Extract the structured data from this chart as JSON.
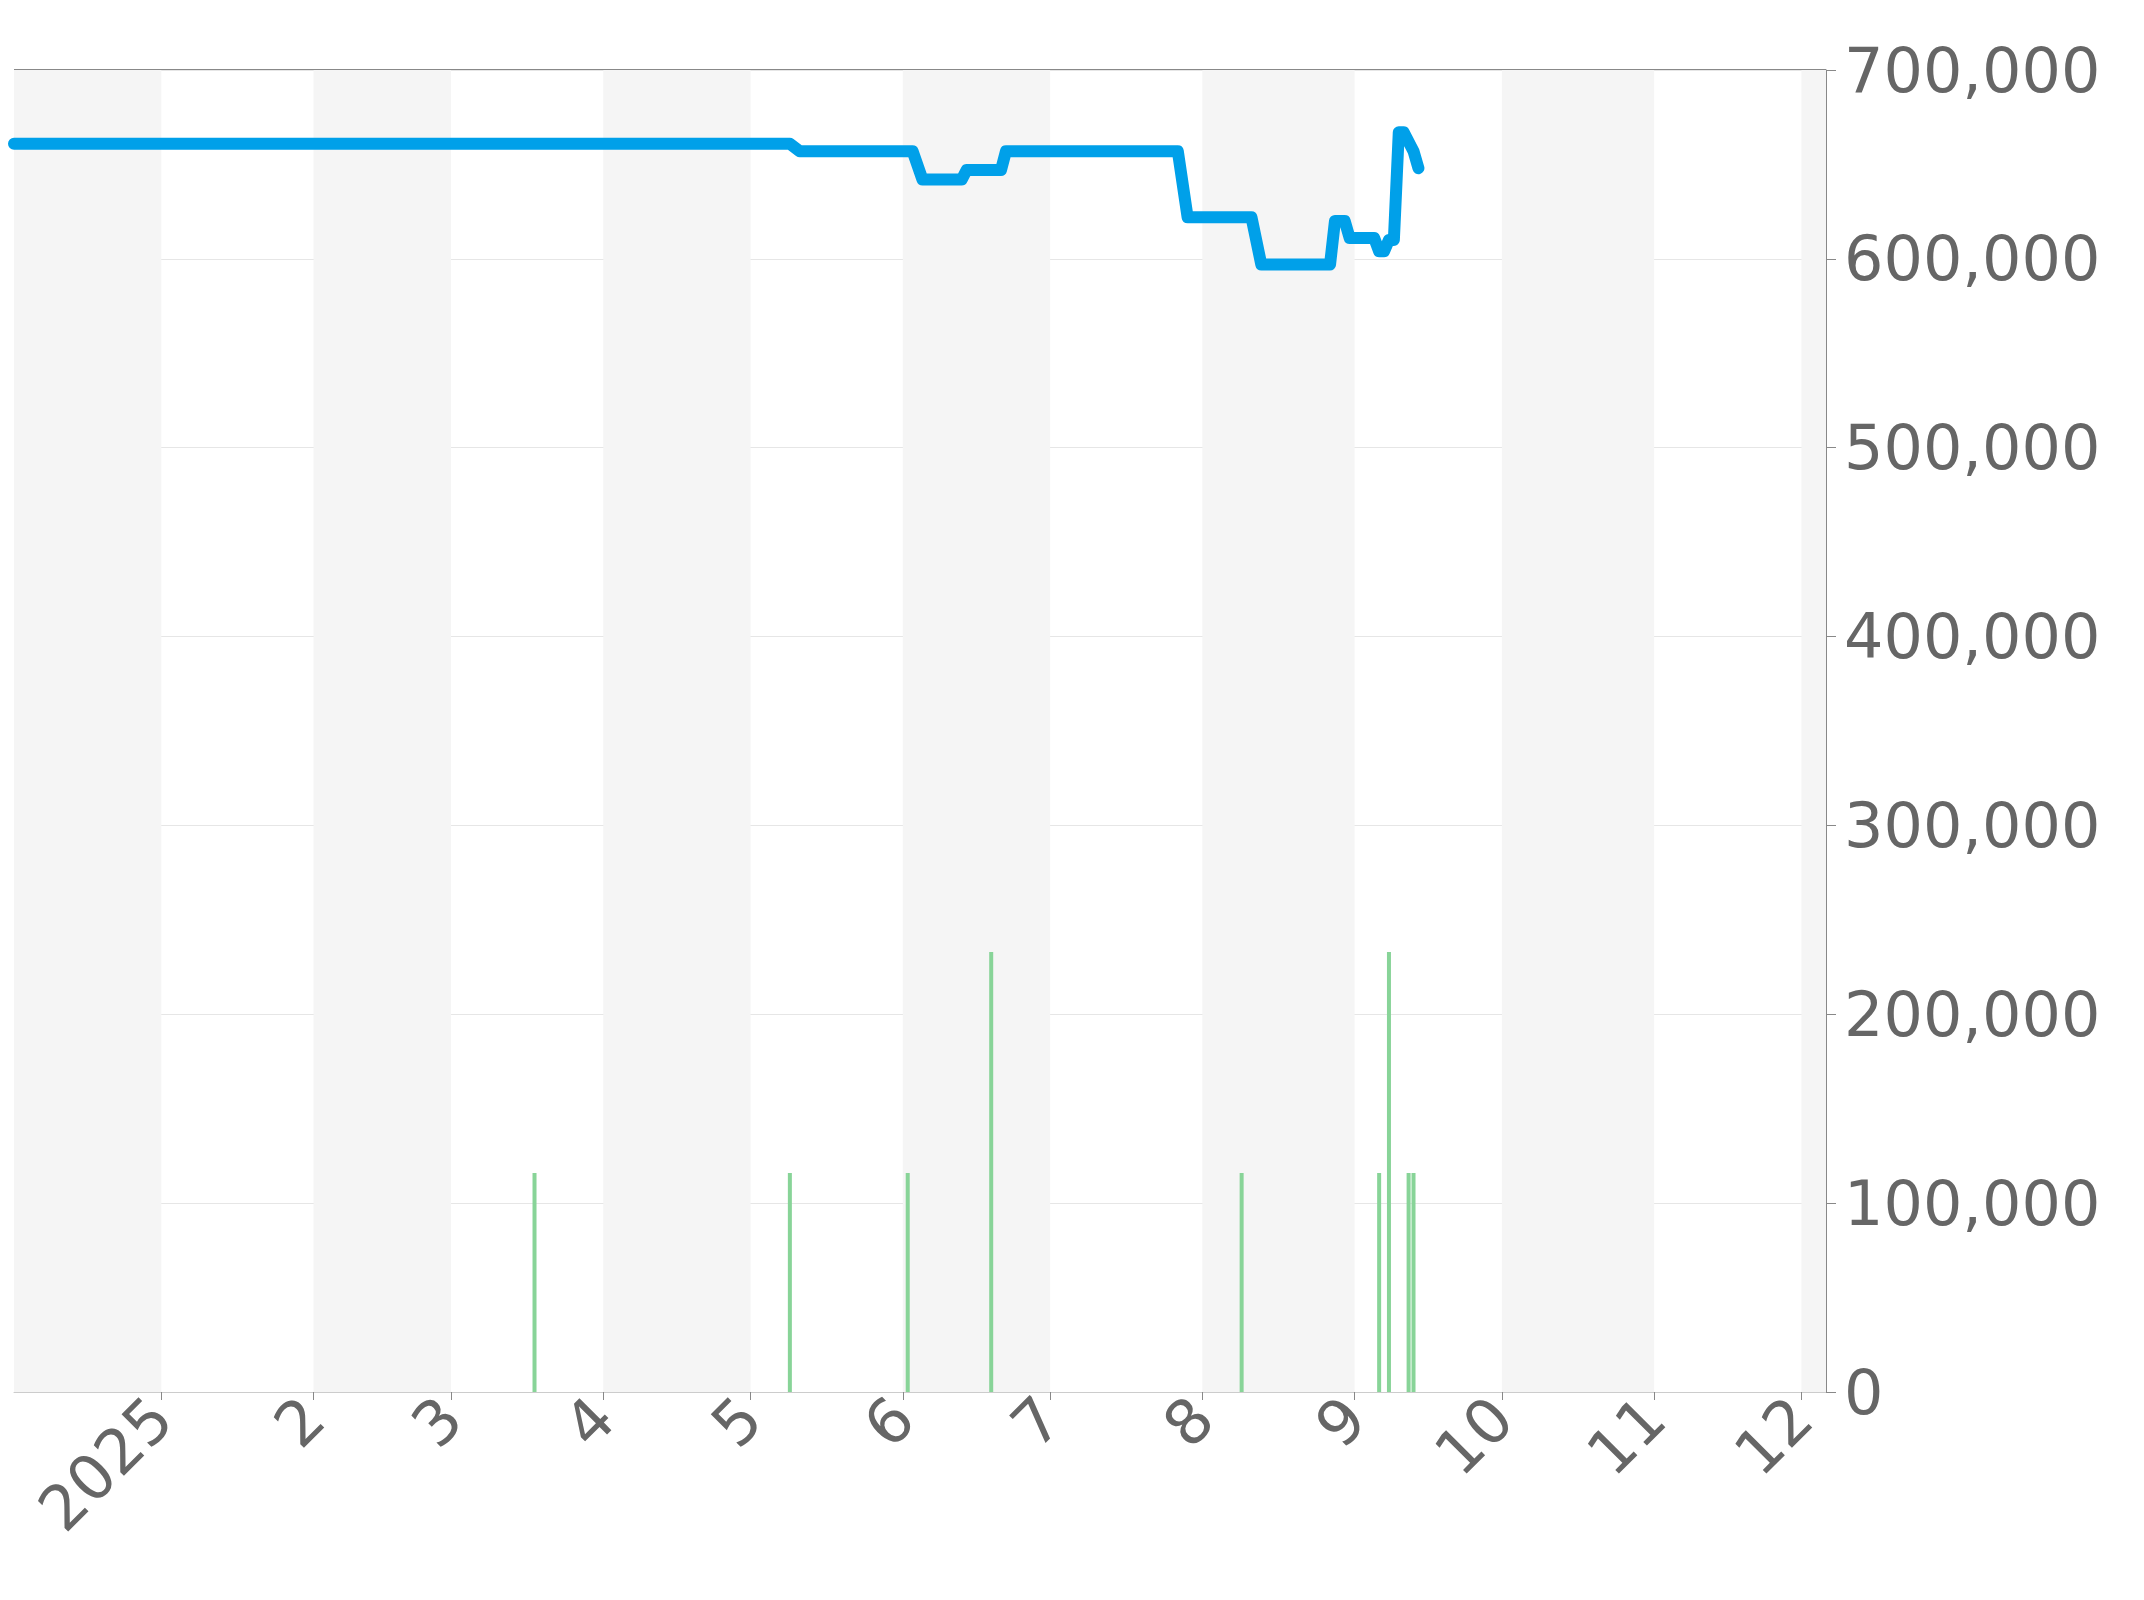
{
  "chart_data": {
    "type": "line",
    "xlim": [
      "2024-12-02",
      "2025-12-06"
    ],
    "xticks": [
      {
        "value": "2025-01-01",
        "label": "2025"
      },
      {
        "value": "2025-02-01",
        "label": "2"
      },
      {
        "value": "2025-03-01",
        "label": "3"
      },
      {
        "value": "2025-04-01",
        "label": "4"
      },
      {
        "value": "2025-05-01",
        "label": "5"
      },
      {
        "value": "2025-06-01",
        "label": "6"
      },
      {
        "value": "2025-07-01",
        "label": "7"
      },
      {
        "value": "2025-08-01",
        "label": "8"
      },
      {
        "value": "2025-09-01",
        "label": "9"
      },
      {
        "value": "2025-10-01",
        "label": "10"
      },
      {
        "value": "2025-11-01",
        "label": "11"
      },
      {
        "value": "2025-12-01",
        "label": "12"
      }
    ],
    "ylim": [
      0,
      700000
    ],
    "yticks": [
      0,
      {
        "value": 100000,
        "label": "100,000"
      },
      {
        "value": 200000,
        "label": "200,000"
      },
      {
        "value": 300000,
        "label": "300,000"
      },
      {
        "value": 400000,
        "label": "400,000"
      },
      {
        "value": 500000,
        "label": "500,000"
      },
      {
        "value": 600000,
        "label": "600,000"
      },
      {
        "value": 700000,
        "label": "700,000"
      }
    ],
    "grid": "y",
    "bands": [
      {
        "axis": "x",
        "from": "2024-12-02",
        "to": "2025-01-01",
        "color": "#f5f5f5"
      },
      {
        "axis": "x",
        "from": "2025-02-01",
        "to": "2025-03-01",
        "color": "#f5f5f5"
      },
      {
        "axis": "x",
        "from": "2025-04-01",
        "to": "2025-05-01",
        "color": "#f5f5f5"
      },
      {
        "axis": "x",
        "from": "2025-06-01",
        "to": "2025-07-01",
        "color": "#f5f5f5"
      },
      {
        "axis": "x",
        "from": "2025-08-01",
        "to": "2025-09-01",
        "color": "#f5f5f5"
      },
      {
        "axis": "x",
        "from": "2025-10-01",
        "to": "2025-11-01",
        "color": "#f5f5f5"
      },
      {
        "axis": "x",
        "from": "2025-12-01",
        "to": "2025-12-06",
        "color": "#f5f5f5"
      }
    ],
    "series": [
      {
        "type": "bar",
        "color": "#88d498",
        "x": [
          "2025-03-18",
          "2025-05-09",
          "2025-06-02",
          "2025-06-19",
          "2025-08-09",
          "2025-09-06",
          "2025-09-08",
          "2025-09-12",
          "2025-09-13"
        ],
        "values": [
          116000,
          116000,
          116000,
          233000,
          116000,
          116000,
          233000,
          116000,
          116000
        ]
      },
      {
        "color": "#00a0e9",
        "x": [
          "2024-12-02",
          "2025-05-09",
          "2025-05-11",
          "2025-06-03",
          "2025-06-05",
          "2025-06-13",
          "2025-06-14",
          "2025-06-21",
          "2025-06-22",
          "2025-07-27",
          "2025-07-29",
          "2025-08-11",
          "2025-08-13",
          "2025-08-27",
          "2025-08-28",
          "2025-08-30",
          "2025-08-31",
          "2025-09-05",
          "2025-09-06",
          "2025-09-07",
          "2025-09-08",
          "2025-09-09",
          "2025-09-10",
          "2025-09-11",
          "2025-09-13",
          "2025-09-14"
        ],
        "values": [
          661000,
          661000,
          657000,
          657000,
          642000,
          642000,
          647000,
          647000,
          657000,
          657000,
          622000,
          622000,
          597000,
          597000,
          620000,
          620000,
          611000,
          611000,
          604000,
          604000,
          610000,
          610000,
          667000,
          667000,
          657000,
          648000
        ]
      }
    ]
  }
}
